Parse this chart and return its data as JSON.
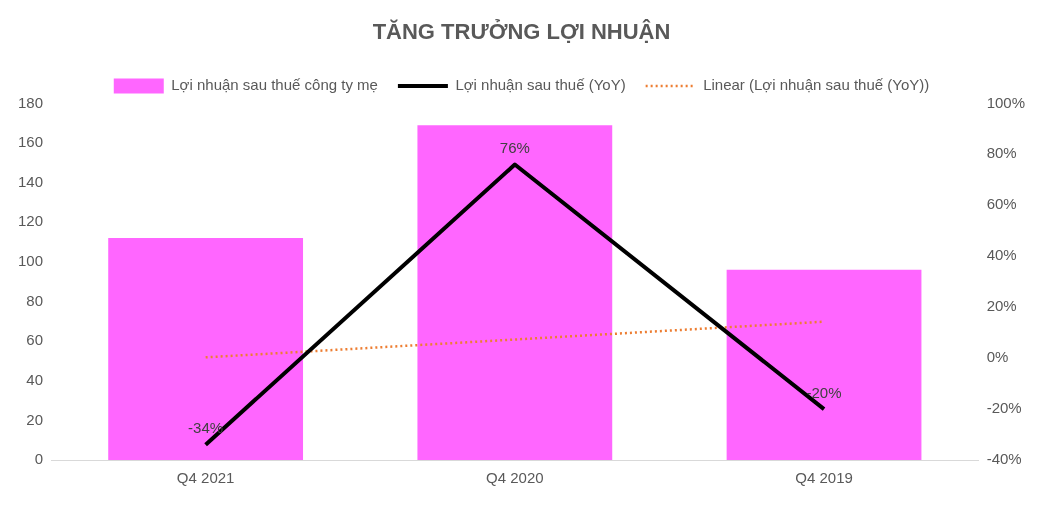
{
  "chart_data": {
    "type": "bar",
    "title": "TĂNG TRƯỞNG LỢI NHUẬN",
    "categories": [
      "Q4 2021",
      "Q4 2020",
      "Q4 2019"
    ],
    "series": [
      {
        "name": "Lợi nhuận sau thuế công ty mẹ",
        "color": "#ff66ff",
        "values": [
          112,
          169,
          96
        ]
      },
      {
        "name": "Lợi nhuận sau thuế (YoY)",
        "type": "line",
        "axis": "y2",
        "color": "#000000",
        "values": [
          -34,
          76,
          -20
        ],
        "value_labels": [
          "-34%",
          "76%",
          "-20%"
        ],
        "line_style": "solid"
      },
      {
        "name": "Linear (Lợi nhuận sau thuế (YoY))",
        "type": "line",
        "axis": "y2",
        "color": "#ed7d31",
        "values": [
          0.3,
          7.3,
          14.3
        ],
        "line_style": "dotted"
      }
    ],
    "ylim": [
      0,
      180
    ],
    "yticks": [
      0,
      20,
      40,
      60,
      80,
      100,
      120,
      140,
      160,
      180
    ],
    "y2lim": [
      -40,
      100
    ],
    "y2ticks": [
      {
        "value": -40,
        "label": "-40%"
      },
      {
        "value": -20,
        "label": "-20%"
      },
      {
        "value": 0,
        "label": "0%"
      },
      {
        "value": 20,
        "label": "20%"
      },
      {
        "value": 40,
        "label": "40%"
      },
      {
        "value": 60,
        "label": "60%"
      },
      {
        "value": 80,
        "label": "80%"
      },
      {
        "value": 100,
        "label": "100%"
      }
    ],
    "grid": false,
    "legend": "top",
    "marker": "none"
  }
}
